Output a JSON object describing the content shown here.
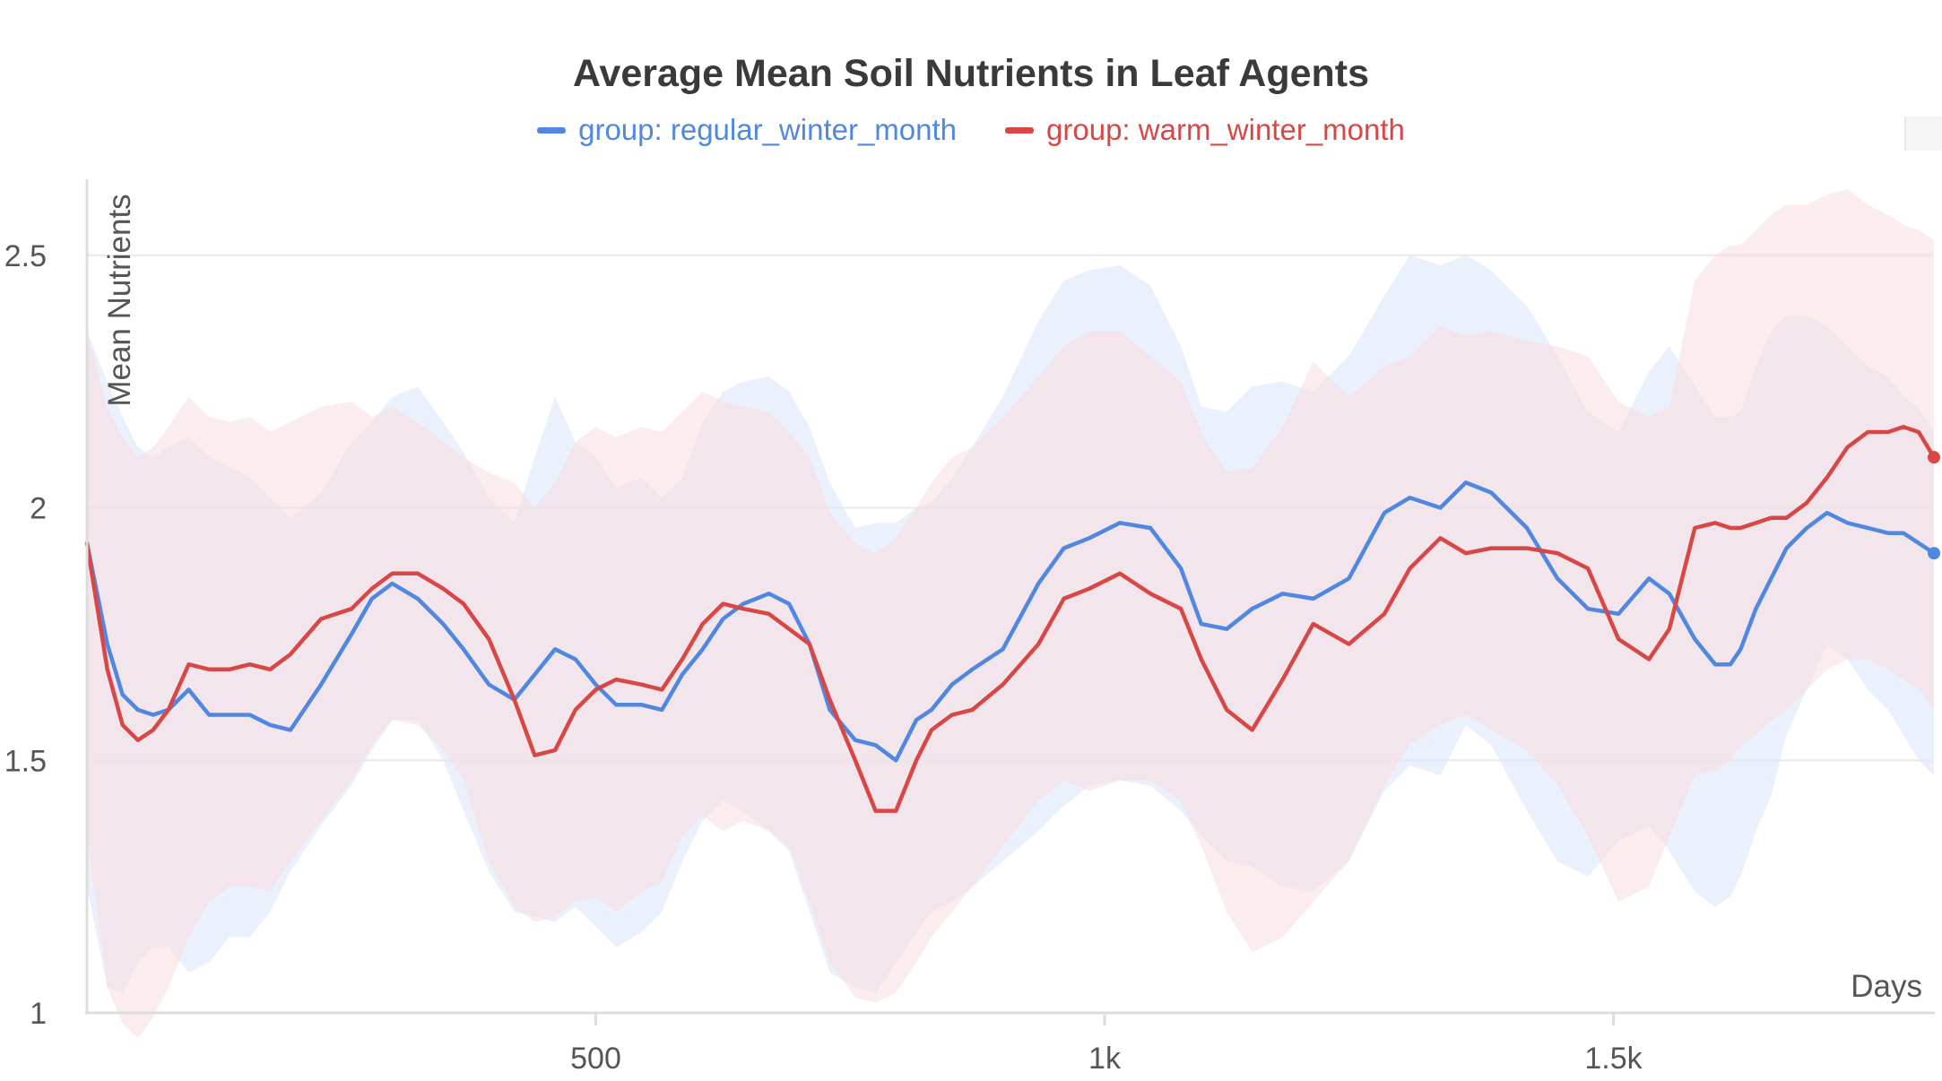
{
  "chart_data": {
    "type": "line",
    "title": "Average Mean Soil Nutrients in Leaf Agents",
    "xlabel": "Days",
    "ylabel": "Mean Nutrients",
    "xlim": [
      0,
      1815
    ],
    "ylim": [
      1,
      2.65
    ],
    "x_ticks": [
      {
        "value": 500,
        "label": "500"
      },
      {
        "value": 1000,
        "label": "1k"
      },
      {
        "value": 1500,
        "label": "1.5k"
      }
    ],
    "y_ticks": [
      {
        "value": 1,
        "label": "1"
      },
      {
        "value": 1.5,
        "label": "1.5"
      },
      {
        "value": 2,
        "label": "2"
      },
      {
        "value": 2.5,
        "label": "2.5"
      }
    ],
    "grid": "horizontal",
    "legend_position": "top",
    "series": [
      {
        "name": "group: regular_winter_month",
        "color": "#5087e0",
        "band_color": "#dce6fa",
        "x": [
          0,
          20,
          35,
          50,
          65,
          80,
          100,
          120,
          140,
          160,
          180,
          200,
          230,
          260,
          280,
          300,
          325,
          350,
          370,
          395,
          420,
          440,
          460,
          480,
          500,
          520,
          545,
          565,
          585,
          605,
          625,
          645,
          670,
          690,
          710,
          730,
          755,
          775,
          795,
          815,
          830,
          850,
          870,
          900,
          935,
          960,
          985,
          1015,
          1045,
          1075,
          1095,
          1120,
          1145,
          1175,
          1205,
          1240,
          1275,
          1300,
          1330,
          1355,
          1380,
          1415,
          1445,
          1475,
          1505,
          1535,
          1555,
          1580,
          1600,
          1615,
          1625,
          1640,
          1655,
          1670,
          1690,
          1710,
          1730,
          1750,
          1770,
          1785,
          1800,
          1815
        ],
        "values": [
          1.93,
          1.73,
          1.63,
          1.6,
          1.59,
          1.6,
          1.64,
          1.59,
          1.59,
          1.59,
          1.57,
          1.56,
          1.65,
          1.75,
          1.82,
          1.85,
          1.82,
          1.77,
          1.72,
          1.65,
          1.62,
          1.67,
          1.72,
          1.7,
          1.65,
          1.61,
          1.61,
          1.6,
          1.67,
          1.72,
          1.78,
          1.81,
          1.83,
          1.81,
          1.73,
          1.6,
          1.54,
          1.53,
          1.5,
          1.58,
          1.6,
          1.65,
          1.68,
          1.72,
          1.85,
          1.92,
          1.94,
          1.97,
          1.96,
          1.88,
          1.77,
          1.76,
          1.8,
          1.83,
          1.82,
          1.86,
          1.99,
          2.02,
          2.0,
          2.05,
          2.03,
          1.96,
          1.86,
          1.8,
          1.79,
          1.86,
          1.83,
          1.74,
          1.69,
          1.69,
          1.72,
          1.8,
          1.86,
          1.92,
          1.96,
          1.99,
          1.97,
          1.96,
          1.95,
          1.95,
          1.93,
          1.91
        ],
        "lower": [
          1.25,
          1.05,
          1.04,
          1.1,
          1.13,
          1.13,
          1.08,
          1.1,
          1.15,
          1.15,
          1.2,
          1.28,
          1.37,
          1.45,
          1.52,
          1.58,
          1.58,
          1.5,
          1.4,
          1.28,
          1.2,
          1.19,
          1.18,
          1.21,
          1.17,
          1.13,
          1.16,
          1.2,
          1.3,
          1.38,
          1.42,
          1.4,
          1.36,
          1.32,
          1.2,
          1.08,
          1.05,
          1.04,
          1.1,
          1.16,
          1.2,
          1.22,
          1.25,
          1.3,
          1.36,
          1.41,
          1.45,
          1.46,
          1.45,
          1.4,
          1.35,
          1.3,
          1.29,
          1.25,
          1.24,
          1.3,
          1.44,
          1.49,
          1.47,
          1.57,
          1.53,
          1.4,
          1.3,
          1.27,
          1.34,
          1.37,
          1.32,
          1.24,
          1.21,
          1.23,
          1.27,
          1.36,
          1.43,
          1.55,
          1.64,
          1.73,
          1.7,
          1.64,
          1.6,
          1.55,
          1.5,
          1.47
        ],
        "upper": [
          2.35,
          2.25,
          2.18,
          2.12,
          2.1,
          2.12,
          2.14,
          2.1,
          2.08,
          2.06,
          2.02,
          1.98,
          2.03,
          2.13,
          2.17,
          2.22,
          2.24,
          2.17,
          2.11,
          2.02,
          1.97,
          2.1,
          2.22,
          2.13,
          2.1,
          2.04,
          2.06,
          2.02,
          2.06,
          2.17,
          2.23,
          2.25,
          2.26,
          2.23,
          2.16,
          2.05,
          1.96,
          1.97,
          1.97,
          2.0,
          2.01,
          2.06,
          2.12,
          2.22,
          2.37,
          2.45,
          2.47,
          2.48,
          2.44,
          2.32,
          2.2,
          2.19,
          2.24,
          2.25,
          2.23,
          2.3,
          2.42,
          2.5,
          2.48,
          2.5,
          2.47,
          2.4,
          2.3,
          2.19,
          2.15,
          2.27,
          2.32,
          2.24,
          2.18,
          2.18,
          2.19,
          2.28,
          2.35,
          2.38,
          2.38,
          2.36,
          2.32,
          2.28,
          2.26,
          2.22,
          2.2,
          2.15
        ]
      },
      {
        "name": "group: warm_winter_month",
        "color": "#d84745",
        "band_color": "#f8dede",
        "x": [
          0,
          20,
          35,
          50,
          65,
          80,
          100,
          120,
          140,
          160,
          180,
          200,
          230,
          260,
          280,
          300,
          325,
          350,
          370,
          395,
          420,
          440,
          460,
          480,
          500,
          520,
          545,
          565,
          585,
          605,
          625,
          645,
          670,
          690,
          710,
          730,
          755,
          775,
          795,
          815,
          830,
          850,
          870,
          900,
          935,
          960,
          985,
          1015,
          1045,
          1075,
          1095,
          1120,
          1145,
          1175,
          1205,
          1240,
          1275,
          1300,
          1330,
          1355,
          1380,
          1415,
          1445,
          1475,
          1505,
          1535,
          1555,
          1580,
          1600,
          1615,
          1625,
          1640,
          1655,
          1670,
          1690,
          1710,
          1730,
          1750,
          1770,
          1785,
          1800,
          1815
        ],
        "values": [
          1.93,
          1.68,
          1.57,
          1.54,
          1.56,
          1.6,
          1.69,
          1.68,
          1.68,
          1.69,
          1.68,
          1.71,
          1.78,
          1.8,
          1.84,
          1.87,
          1.87,
          1.84,
          1.81,
          1.74,
          1.62,
          1.51,
          1.52,
          1.6,
          1.64,
          1.66,
          1.65,
          1.64,
          1.7,
          1.77,
          1.81,
          1.8,
          1.79,
          1.76,
          1.73,
          1.62,
          1.5,
          1.4,
          1.4,
          1.5,
          1.56,
          1.59,
          1.6,
          1.65,
          1.73,
          1.82,
          1.84,
          1.87,
          1.83,
          1.8,
          1.7,
          1.6,
          1.56,
          1.66,
          1.77,
          1.73,
          1.79,
          1.88,
          1.94,
          1.91,
          1.92,
          1.92,
          1.91,
          1.88,
          1.74,
          1.7,
          1.76,
          1.96,
          1.97,
          1.96,
          1.96,
          1.97,
          1.98,
          1.98,
          2.01,
          2.06,
          2.12,
          2.15,
          2.15,
          2.16,
          2.15,
          2.1
        ]
      }
    ],
    "warm_band": {
      "lower": [
        1.35,
        1.05,
        0.98,
        0.95,
        0.99,
        1.05,
        1.15,
        1.22,
        1.25,
        1.25,
        1.24,
        1.3,
        1.38,
        1.46,
        1.53,
        1.58,
        1.57,
        1.52,
        1.46,
        1.3,
        1.21,
        1.18,
        1.19,
        1.22,
        1.23,
        1.2,
        1.24,
        1.26,
        1.35,
        1.39,
        1.36,
        1.38,
        1.36,
        1.33,
        1.22,
        1.1,
        1.03,
        1.02,
        1.04,
        1.1,
        1.15,
        1.2,
        1.25,
        1.33,
        1.42,
        1.46,
        1.44,
        1.46,
        1.46,
        1.42,
        1.33,
        1.2,
        1.12,
        1.15,
        1.22,
        1.3,
        1.45,
        1.53,
        1.57,
        1.59,
        1.56,
        1.52,
        1.45,
        1.35,
        1.22,
        1.25,
        1.35,
        1.47,
        1.48,
        1.5,
        1.53,
        1.55,
        1.58,
        1.6,
        1.64,
        1.68,
        1.7,
        1.7,
        1.68,
        1.66,
        1.64,
        1.6
      ],
      "upper": [
        2.35,
        2.2,
        2.14,
        2.1,
        2.12,
        2.16,
        2.22,
        2.18,
        2.17,
        2.18,
        2.15,
        2.17,
        2.2,
        2.21,
        2.18,
        2.2,
        2.17,
        2.13,
        2.1,
        2.07,
        2.05,
        2.0,
        2.05,
        2.13,
        2.16,
        2.14,
        2.16,
        2.15,
        2.19,
        2.23,
        2.21,
        2.2,
        2.19,
        2.15,
        2.1,
        1.99,
        1.93,
        1.91,
        1.94,
        2.0,
        2.05,
        2.1,
        2.12,
        2.18,
        2.26,
        2.32,
        2.35,
        2.35,
        2.3,
        2.25,
        2.15,
        2.07,
        2.08,
        2.16,
        2.29,
        2.22,
        2.28,
        2.3,
        2.36,
        2.34,
        2.35,
        2.33,
        2.32,
        2.3,
        2.21,
        2.18,
        2.2,
        2.45,
        2.5,
        2.52,
        2.52,
        2.55,
        2.58,
        2.6,
        2.6,
        2.62,
        2.63,
        2.6,
        2.58,
        2.56,
        2.55,
        2.53
      ]
    }
  }
}
